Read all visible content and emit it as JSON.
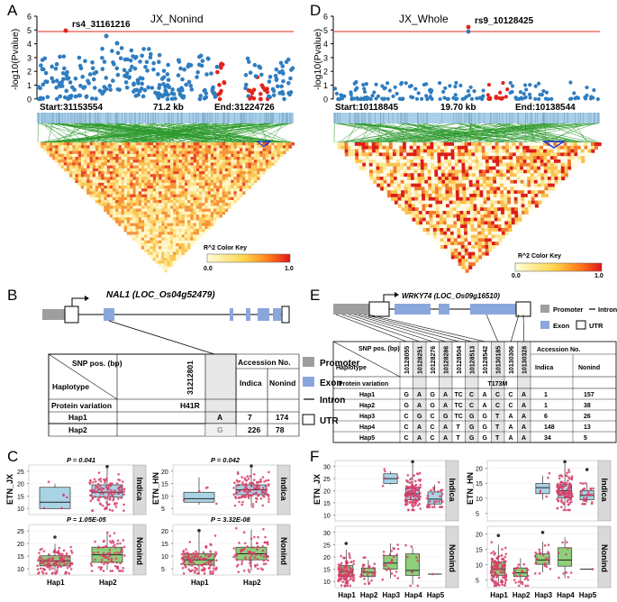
{
  "colors": {
    "blue_pts": "#2f7dc0",
    "red_pts": "#e0241b",
    "green_lines": "#2e9a2e",
    "gene_bar": "#a9d0ea",
    "exon": "#8aa7dc",
    "promoter": "#9e9e9e",
    "box_fill": "#a8d4e6",
    "box_fill2": "#8fcf7a",
    "strip": "#d9d9d9",
    "jitter": "#d6406a"
  },
  "A": {
    "letter": "A",
    "ylabel": "-log10(Pvalue)",
    "yticks": [
      "6",
      "5",
      "4",
      "3",
      "2",
      "1",
      "0"
    ],
    "title": "JX_Nonind",
    "snp": "rs4_31161216",
    "start": "Start:31153554",
    "mid": "71.2 kb",
    "end": "End:31224726",
    "key_title": "R^2 Color Key",
    "key_min": "0.0",
    "key_max": "1.0"
  },
  "D": {
    "letter": "D",
    "ylabel": "-log10(Pvalue)",
    "yticks": [
      "6",
      "5",
      "4",
      "3",
      "2",
      "1",
      "0"
    ],
    "title": "JX_Whole",
    "snp": "rs9_10128425",
    "start": "Start:10118845",
    "mid": "19.70 kb",
    "end": "End:10138544",
    "key_title": "R^2 Color Key",
    "key_min": "0.0",
    "key_max": "1.0"
  },
  "B": {
    "letter": "B",
    "gene": "NAL1 (LOC_Os04g52479)",
    "snp_pos_header": "SNP pos. (bp)",
    "haplotype": "Haplotype",
    "snp_id": "31212801",
    "accession": "Accession No.",
    "indica": "Indica",
    "nonind": "Nonind",
    "protein_variation": "Protein variation",
    "variation": "H41R",
    "rows": [
      {
        "hap": "Hap1",
        "allele": "A",
        "indica": "7",
        "nonind": "174"
      },
      {
        "hap": "Hap2",
        "allele": "G",
        "indica": "226",
        "nonind": "78"
      }
    ],
    "legend": {
      "promoter": "Promoter",
      "exon": "Exon",
      "intron": "Intron",
      "utr": "UTR"
    }
  },
  "E": {
    "letter": "E",
    "gene": "WRKY74 (LOC_Os09g16510)",
    "snp_pos_header": "SNP pos. (bp)",
    "haplotype": "Haplotype",
    "snp_ids": [
      "10128055",
      "10128251",
      "10128276",
      "10128286",
      "10128504",
      "10128513",
      "10128542",
      "10130185",
      "10130306",
      "10130328"
    ],
    "accession": "Accession No.",
    "indica": "Indica",
    "nonind": "Nonind",
    "protein_variation": "Protein variation",
    "variation": "T173M",
    "rows": [
      {
        "hap": "Hap1",
        "alleles": [
          "G",
          "A",
          "G",
          "A",
          "TC",
          "C",
          "A",
          "C",
          "C",
          "A"
        ],
        "indica": "1",
        "nonind": "157"
      },
      {
        "hap": "Hap2",
        "alleles": [
          "G",
          "A",
          "G",
          "A",
          "TC",
          "C",
          "A",
          "C",
          "C",
          "A"
        ],
        "indica": "1",
        "nonind": "38"
      },
      {
        "hap": "Hap3",
        "alleles": [
          "C",
          "G",
          "C",
          "G",
          "TC",
          "G",
          "G",
          "T",
          "A",
          "A"
        ],
        "indica": "6",
        "nonind": "26"
      },
      {
        "hap": "Hap4",
        "alleles": [
          "C",
          "A",
          "C",
          "A",
          "T",
          "G",
          "G",
          "T",
          "A",
          "A"
        ],
        "indica": "148",
        "nonind": "13"
      },
      {
        "hap": "Hap5",
        "alleles": [
          "C",
          "A",
          "C",
          "A",
          "T",
          "G",
          "G",
          "T",
          "A",
          "A"
        ],
        "indica": "34",
        "nonind": "5"
      }
    ],
    "legend": {
      "promoter": "Promoter",
      "exon": "Exon",
      "intron": "Intron",
      "utr": "UTR"
    }
  },
  "C": {
    "letter": "C",
    "left_ylabel": "ETN_JX",
    "right_ylabel": "ETN_HN",
    "p_left_top": "P = 0.041",
    "p_right_top": "P = 0.042",
    "p_left_bot": "P = 1.05E-05",
    "p_right_bot": "P = 3.32E-08",
    "strip_top": "Indica",
    "strip_bot": "Nonind",
    "yticks_left": [
      "25",
      "20",
      "15",
      "10"
    ],
    "yticks_right": [
      "20",
      "15",
      "10",
      "5"
    ],
    "xlabels": [
      "Hap1",
      "Hap2"
    ]
  },
  "F": {
    "letter": "F",
    "left_ylabel": "ETN_JX",
    "right_ylabel": "ETN_HN",
    "strip_top": "Indica",
    "strip_bot": "Nonind",
    "yticks_left_top": [
      "30",
      "25",
      "20",
      "15",
      "10"
    ],
    "yticks_left_bot": [
      "30",
      "25",
      "20",
      "15",
      "10"
    ],
    "yticks_right_top": [
      "20",
      "15",
      "10",
      "5"
    ],
    "yticks_right_bot": [
      "20",
      "15",
      "10",
      "5"
    ],
    "xlabels": [
      "Hap1",
      "Hap2",
      "Hap3",
      "Hap4",
      "Hap5"
    ]
  }
}
